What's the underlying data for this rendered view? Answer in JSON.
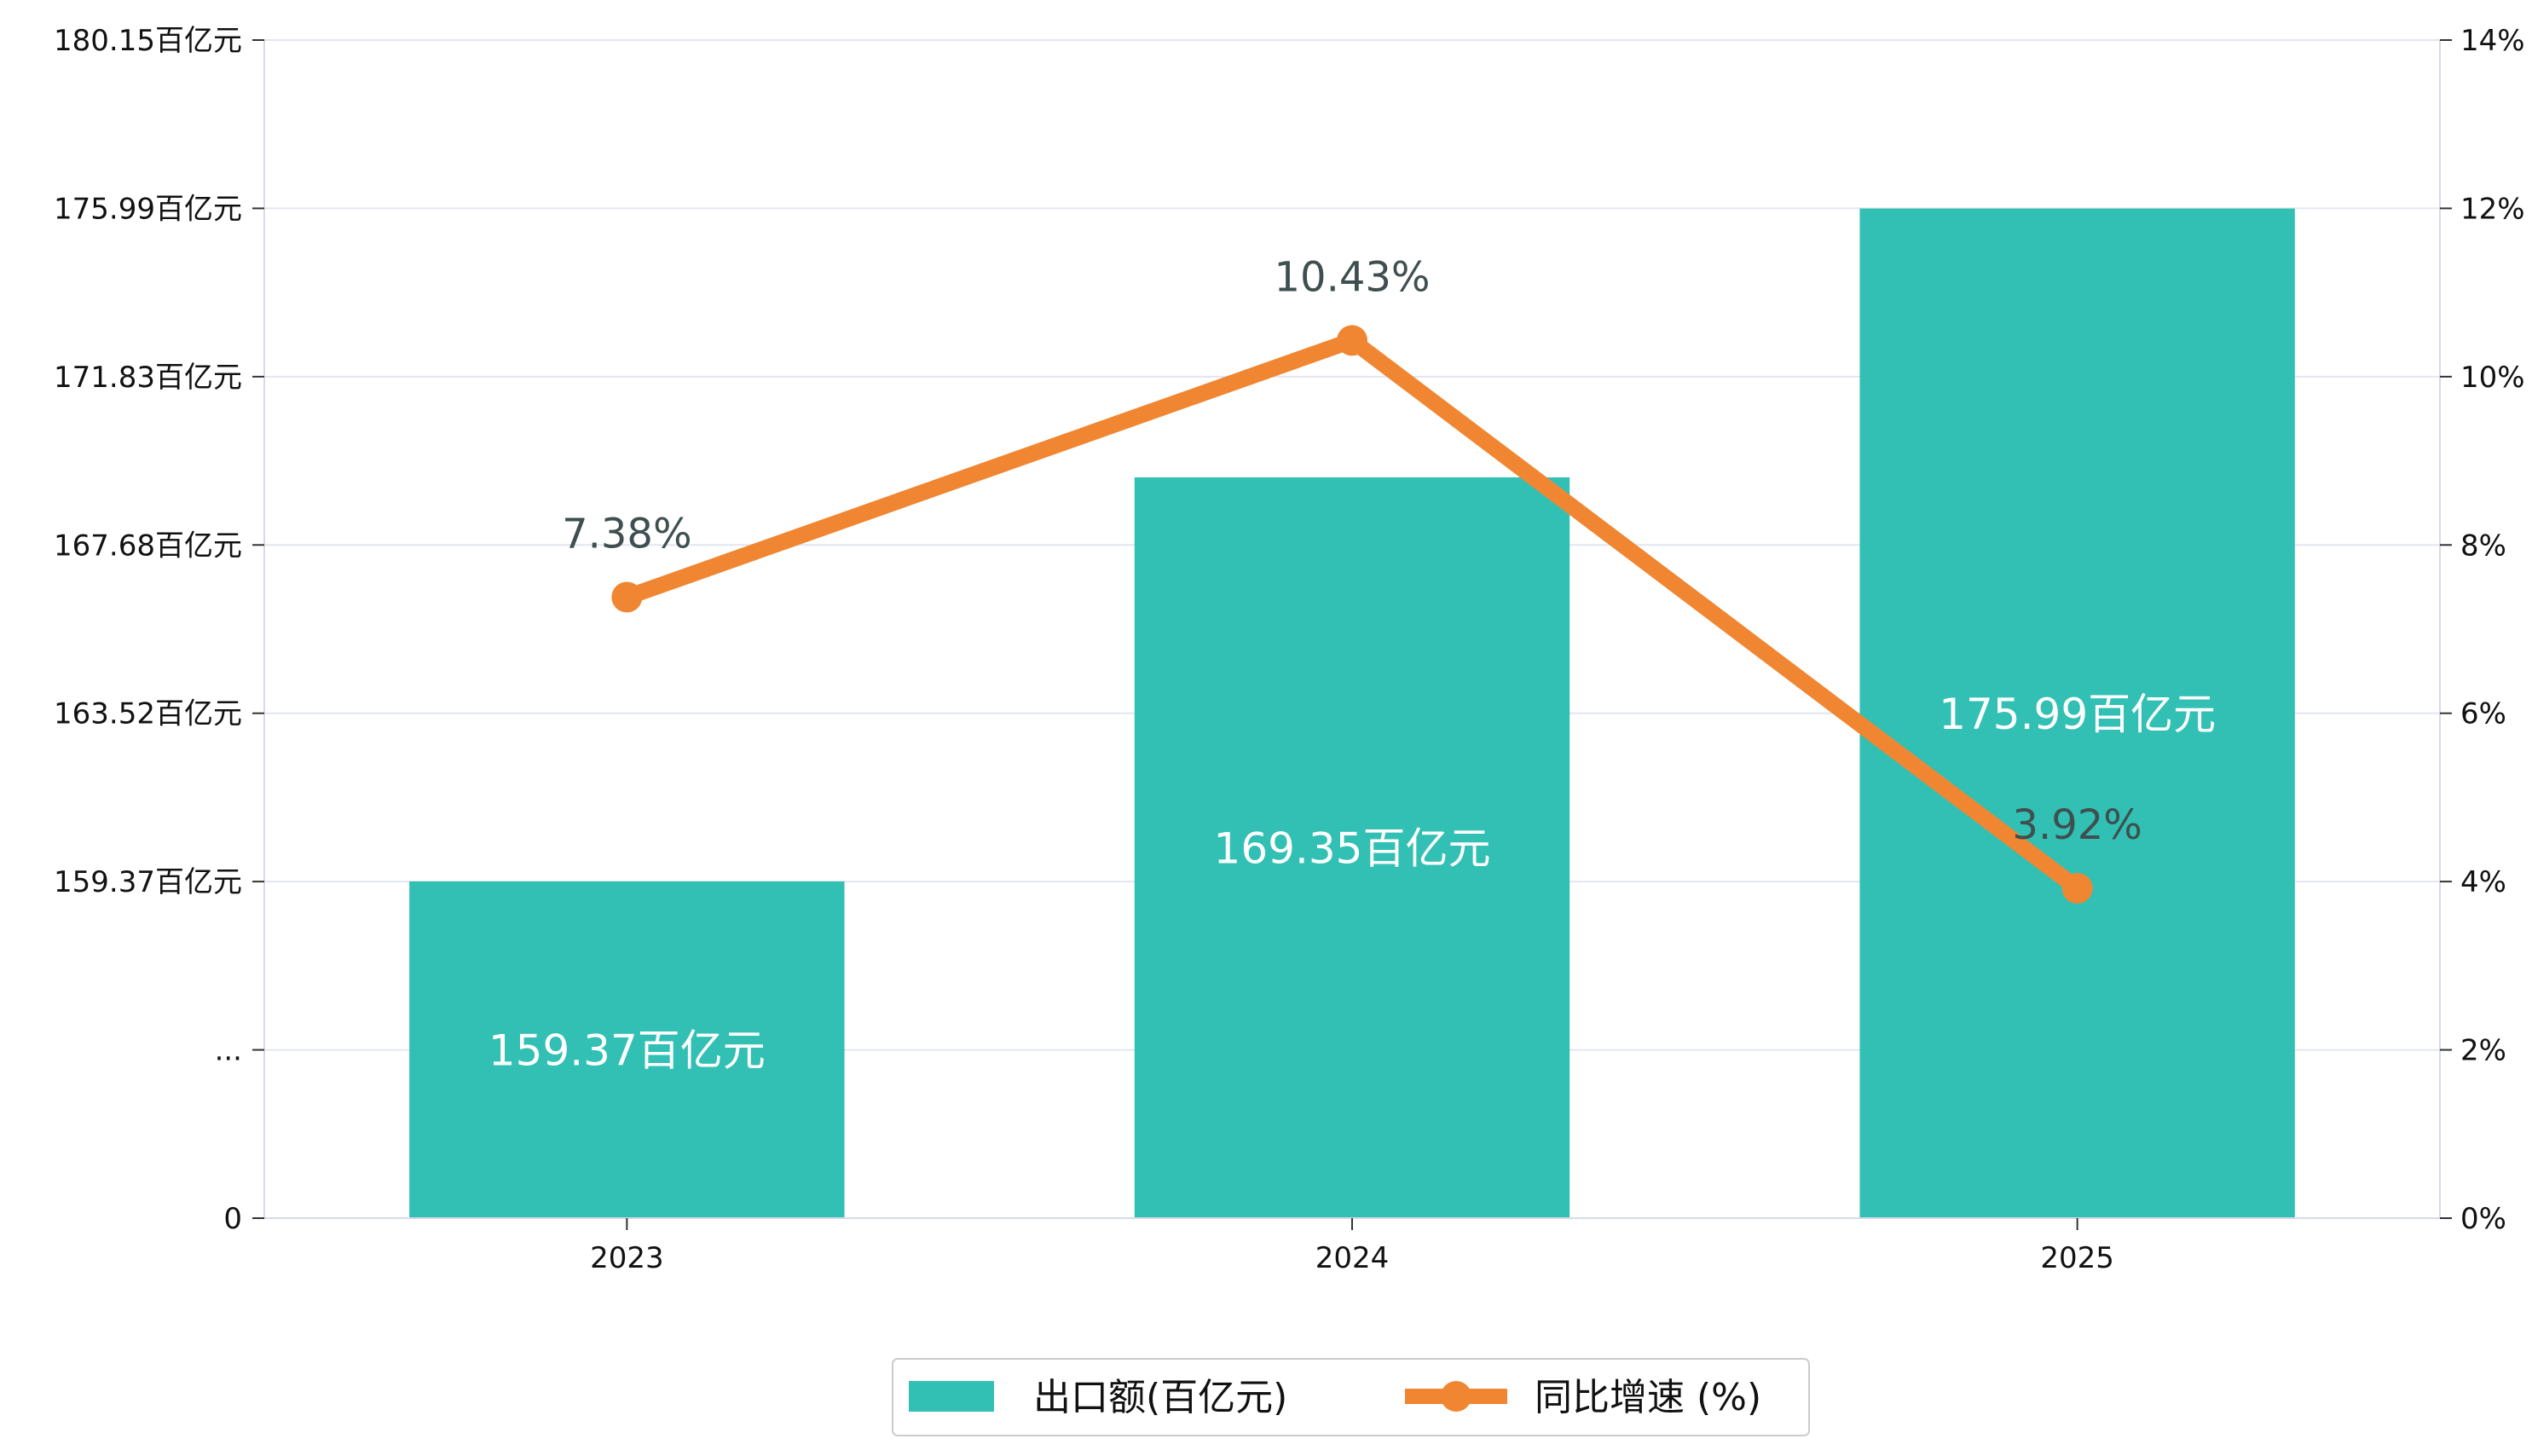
{
  "chart_data": {
    "type": "bar+line",
    "categories": [
      "2023",
      "2024",
      "2025"
    ],
    "series": [
      {
        "name": "出口额(百亿元)",
        "type": "bar",
        "axis": "left",
        "values": [
          159.37,
          169.35,
          175.99
        ],
        "labels": [
          "159.37百亿元",
          "169.35百亿元",
          "175.99百亿元"
        ],
        "color": "#32c0b4"
      },
      {
        "name": "同比增速 (%)",
        "type": "line",
        "axis": "right",
        "values": [
          7.38,
          10.43,
          3.92
        ],
        "labels": [
          "7.38%",
          "10.43%",
          "3.92%"
        ],
        "color": "#f08632"
      }
    ],
    "left_axis": {
      "break_value": "...",
      "ticks": [
        "0",
        "...",
        "159.37百亿元",
        "163.52百亿元",
        "167.68百亿元",
        "171.83百亿元",
        "175.99百亿元",
        "180.15百亿元"
      ],
      "scale_min": 155.21,
      "scale_max": 180.15
    },
    "right_axis": {
      "ylim": [
        0,
        14
      ],
      "ticks": [
        "0%",
        "2%",
        "4%",
        "6%",
        "8%",
        "10%",
        "12%",
        "14%"
      ]
    },
    "legend": {
      "position": "bottom-center",
      "entries": [
        "出口额(百亿元)",
        "同比增速 (%)"
      ]
    },
    "grid": true,
    "colors": {
      "bar": "#32c0b4",
      "line": "#f08632",
      "grid": "#e3e6f0",
      "axis": "#d8dbe6",
      "legend_border": "#cccccc",
      "point_label": "#3f4f4f",
      "bar_label": "#ffffff"
    }
  }
}
